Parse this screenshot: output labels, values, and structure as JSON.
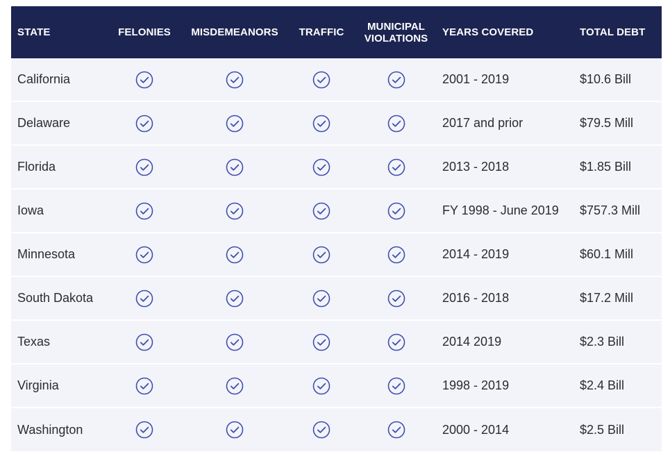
{
  "table": {
    "headers": {
      "state": "STATE",
      "felonies": "FELONIES",
      "misdemeanors": "MISDEMEANORS",
      "traffic": "TRAFFIC",
      "municipal_line1": "MUNICIPAL",
      "municipal_line2": "VIOLATIONS",
      "years": "YEARS COVERED",
      "debt": "TOTAL DEBT"
    },
    "colors": {
      "header_bg": "#1c2451",
      "row_bg": "#f3f4f9",
      "check_color": "#3f4eb0"
    },
    "check_icon": "check-circle-icon",
    "rows": [
      {
        "state": "California",
        "felonies": true,
        "misdemeanors": true,
        "traffic": true,
        "municipal": true,
        "years": "2001 - 2019",
        "debt": "$10.6 Bill"
      },
      {
        "state": "Delaware",
        "felonies": true,
        "misdemeanors": true,
        "traffic": true,
        "municipal": true,
        "years": "2017 and prior",
        "debt": "$79.5 Mill"
      },
      {
        "state": "Florida",
        "felonies": true,
        "misdemeanors": true,
        "traffic": true,
        "municipal": true,
        "years": "2013 - 2018",
        "debt": "$1.85 Bill"
      },
      {
        "state": "Iowa",
        "felonies": true,
        "misdemeanors": true,
        "traffic": true,
        "municipal": true,
        "years": "FY 1998 - June 2019",
        "debt": "$757.3 Mill"
      },
      {
        "state": "Minnesota",
        "felonies": true,
        "misdemeanors": true,
        "traffic": true,
        "municipal": true,
        "years": "2014 - 2019",
        "debt": "$60.1 Mill"
      },
      {
        "state": "South Dakota",
        "felonies": true,
        "misdemeanors": true,
        "traffic": true,
        "municipal": true,
        "years": "2016 - 2018",
        "debt": "$17.2 Mill"
      },
      {
        "state": "Texas",
        "felonies": true,
        "misdemeanors": true,
        "traffic": true,
        "municipal": true,
        "years": "2014  2019",
        "debt": "$2.3 Bill"
      },
      {
        "state": "Virginia",
        "felonies": true,
        "misdemeanors": true,
        "traffic": true,
        "municipal": true,
        "years": "1998 - 2019",
        "debt": "$2.4 Bill"
      },
      {
        "state": "Washington",
        "felonies": true,
        "misdemeanors": true,
        "traffic": true,
        "municipal": true,
        "years": "2000 - 2014",
        "debt": "$2.5 Bill"
      }
    ]
  }
}
